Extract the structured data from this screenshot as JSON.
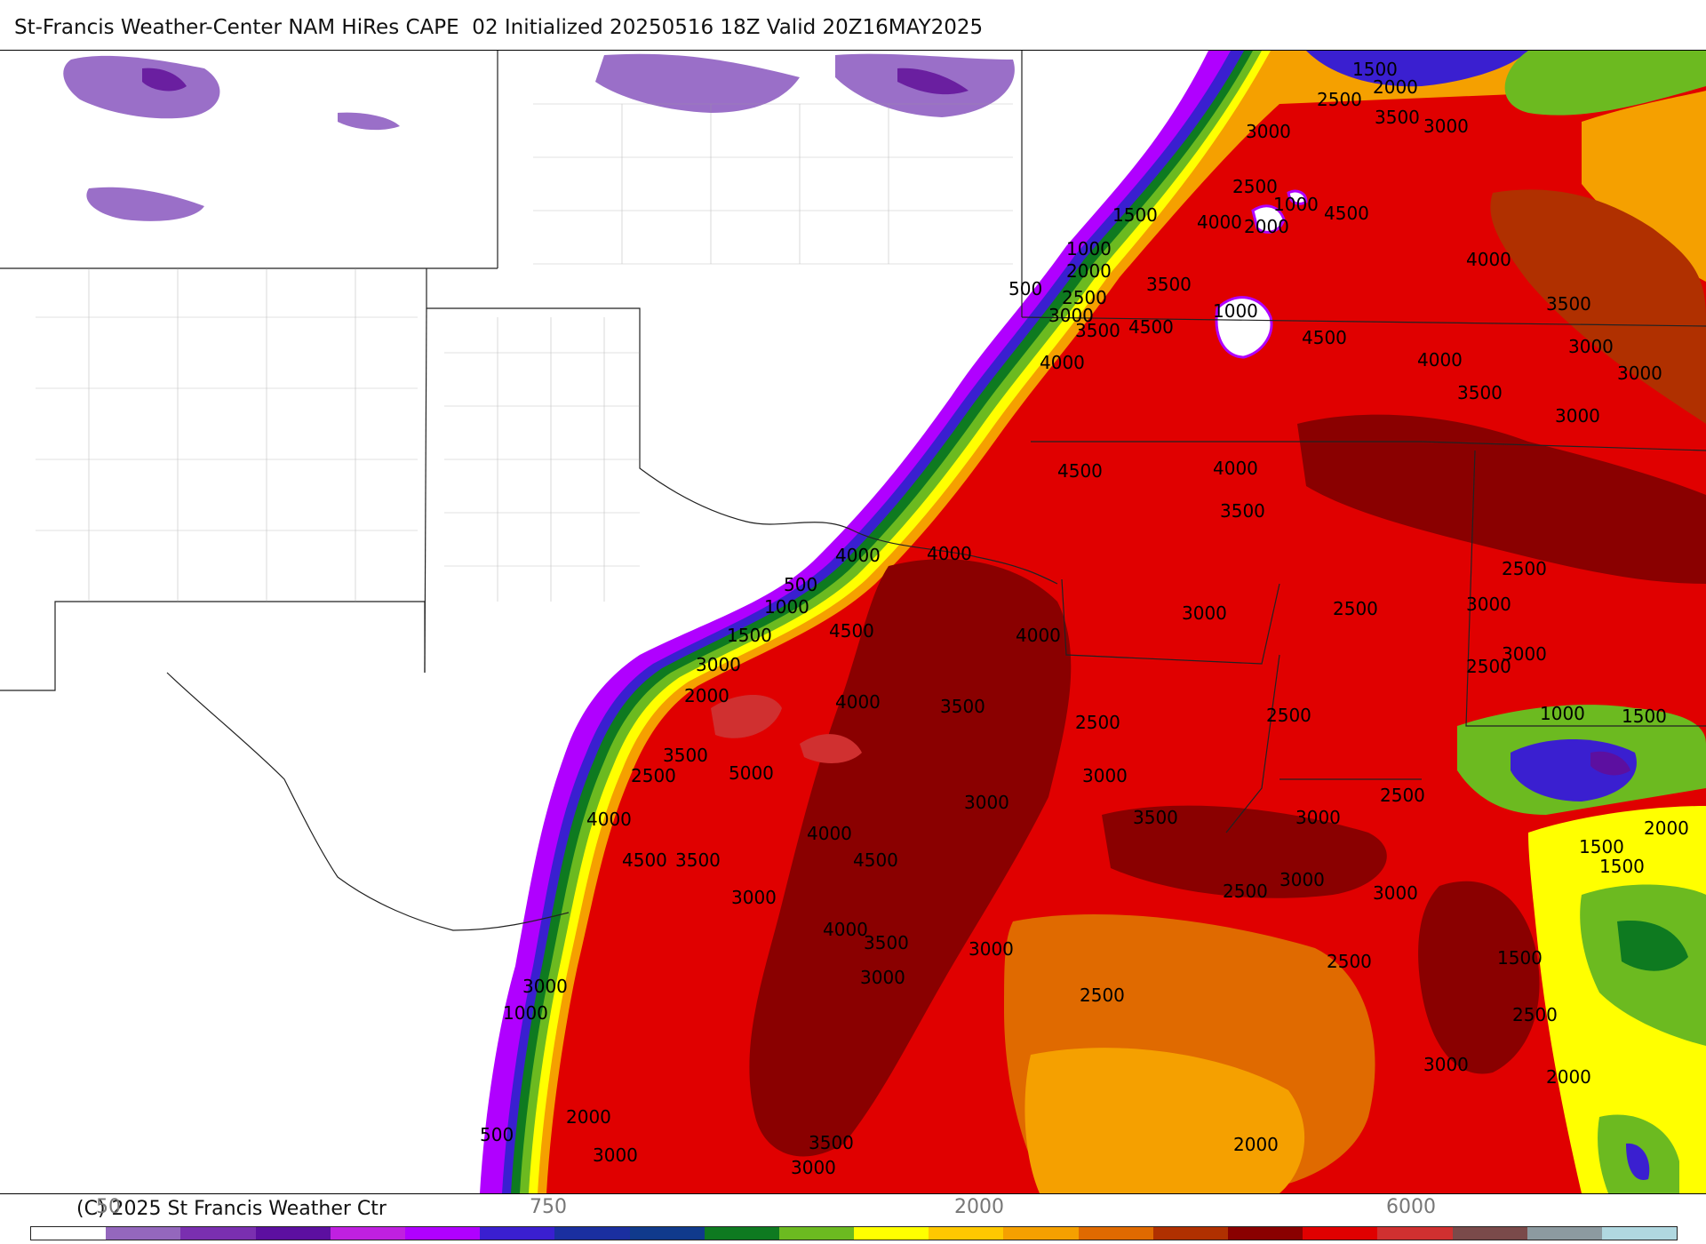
{
  "header": {
    "title": "St-Francis Weather-Center NAM HiRes CAPE  02 Initialized 20250516 18Z Valid 20Z16MAY2025"
  },
  "footer": {
    "copyright": "(C) 2025 St Francis Weather Ctr"
  },
  "colorbar": {
    "ticks": [
      "50",
      "750",
      "2000",
      "6000"
    ],
    "colors": [
      "#ffffff",
      "#9467bd",
      "#7a2fb0",
      "#5c0fa0",
      "#c020e0",
      "#b000ff",
      "#3a1fd0",
      "#1a2fa0",
      "#103a8c",
      "#0e7a20",
      "#6cba20",
      "#ffff00",
      "#ffc800",
      "#f5a000",
      "#e06a00",
      "#b03000",
      "#8a0000",
      "#e00000",
      "#d03030",
      "#7a4a4a",
      "#8c9aa0",
      "#b0d8e0"
    ]
  },
  "map": {
    "variable": "CAPE",
    "contour_labels": [
      "1500",
      "2000",
      "2500",
      "3500",
      "3000",
      "2500",
      "3000",
      "1000",
      "4000",
      "1500",
      "4000",
      "2000",
      "4500",
      "1000",
      "2000",
      "500",
      "3500",
      "2500",
      "1000",
      "3000",
      "3500",
      "4500",
      "4500",
      "4000",
      "4000",
      "3000",
      "3500",
      "3000",
      "3500",
      "4500",
      "4000",
      "3000",
      "3500",
      "4000",
      "4000",
      "500",
      "1000",
      "4500",
      "1500",
      "4000",
      "3000",
      "2500",
      "3000",
      "2000",
      "4000",
      "3500",
      "2500",
      "2500",
      "3000",
      "2500",
      "1000",
      "1500",
      "3500",
      "2500",
      "5000",
      "2500",
      "2500",
      "4000",
      "3000",
      "3000",
      "3000",
      "4500",
      "4000",
      "3500",
      "4500",
      "3500",
      "3000",
      "2500",
      "3000",
      "3000",
      "3000",
      "1500",
      "1500",
      "2000",
      "3000",
      "4000",
      "3500",
      "3000",
      "2500",
      "3000",
      "2500",
      "1000",
      "1500",
      "2500",
      "3000",
      "2000",
      "2000",
      "500",
      "3000",
      "3500",
      "3000",
      "2000"
    ]
  }
}
